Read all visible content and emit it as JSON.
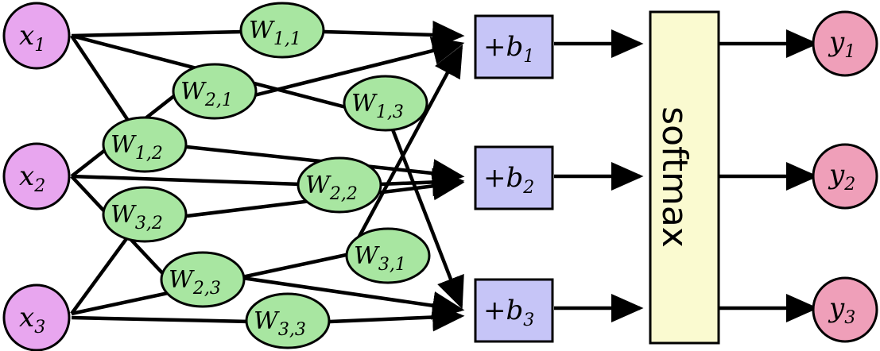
{
  "colors": {
    "input_fill": "#e8a6ef",
    "weight_fill": "#a8e6a1",
    "bias_fill": "#c6c5f7",
    "softmax_fill": "#fafad0",
    "output_fill": "#ef9fb9",
    "stroke": "#000000"
  },
  "inputs": [
    {
      "id": "x1",
      "base": "x",
      "sub": "1"
    },
    {
      "id": "x2",
      "base": "x",
      "sub": "2"
    },
    {
      "id": "x3",
      "base": "x",
      "sub": "3"
    }
  ],
  "weights": [
    {
      "id": "W11",
      "base": "W",
      "sub": "1,1"
    },
    {
      "id": "W21",
      "base": "W",
      "sub": "2,1"
    },
    {
      "id": "W12",
      "base": "W",
      "sub": "1,2"
    },
    {
      "id": "W13",
      "base": "W",
      "sub": "1,3"
    },
    {
      "id": "W22",
      "base": "W",
      "sub": "2,2"
    },
    {
      "id": "W32",
      "base": "W",
      "sub": "3,2"
    },
    {
      "id": "W31",
      "base": "W",
      "sub": "3,1"
    },
    {
      "id": "W23",
      "base": "W",
      "sub": "2,3"
    },
    {
      "id": "W33",
      "base": "W",
      "sub": "3,3"
    }
  ],
  "biases": [
    {
      "id": "b1",
      "prefix": "+",
      "base": "b",
      "sub": "1"
    },
    {
      "id": "b2",
      "prefix": "+",
      "base": "b",
      "sub": "2"
    },
    {
      "id": "b3",
      "prefix": "+",
      "base": "b",
      "sub": "3"
    }
  ],
  "softmax": {
    "label": "softmax"
  },
  "outputs": [
    {
      "id": "y1",
      "base": "y",
      "sub": "1"
    },
    {
      "id": "y2",
      "base": "y",
      "sub": "2"
    },
    {
      "id": "y3",
      "base": "y",
      "sub": "3"
    }
  ]
}
